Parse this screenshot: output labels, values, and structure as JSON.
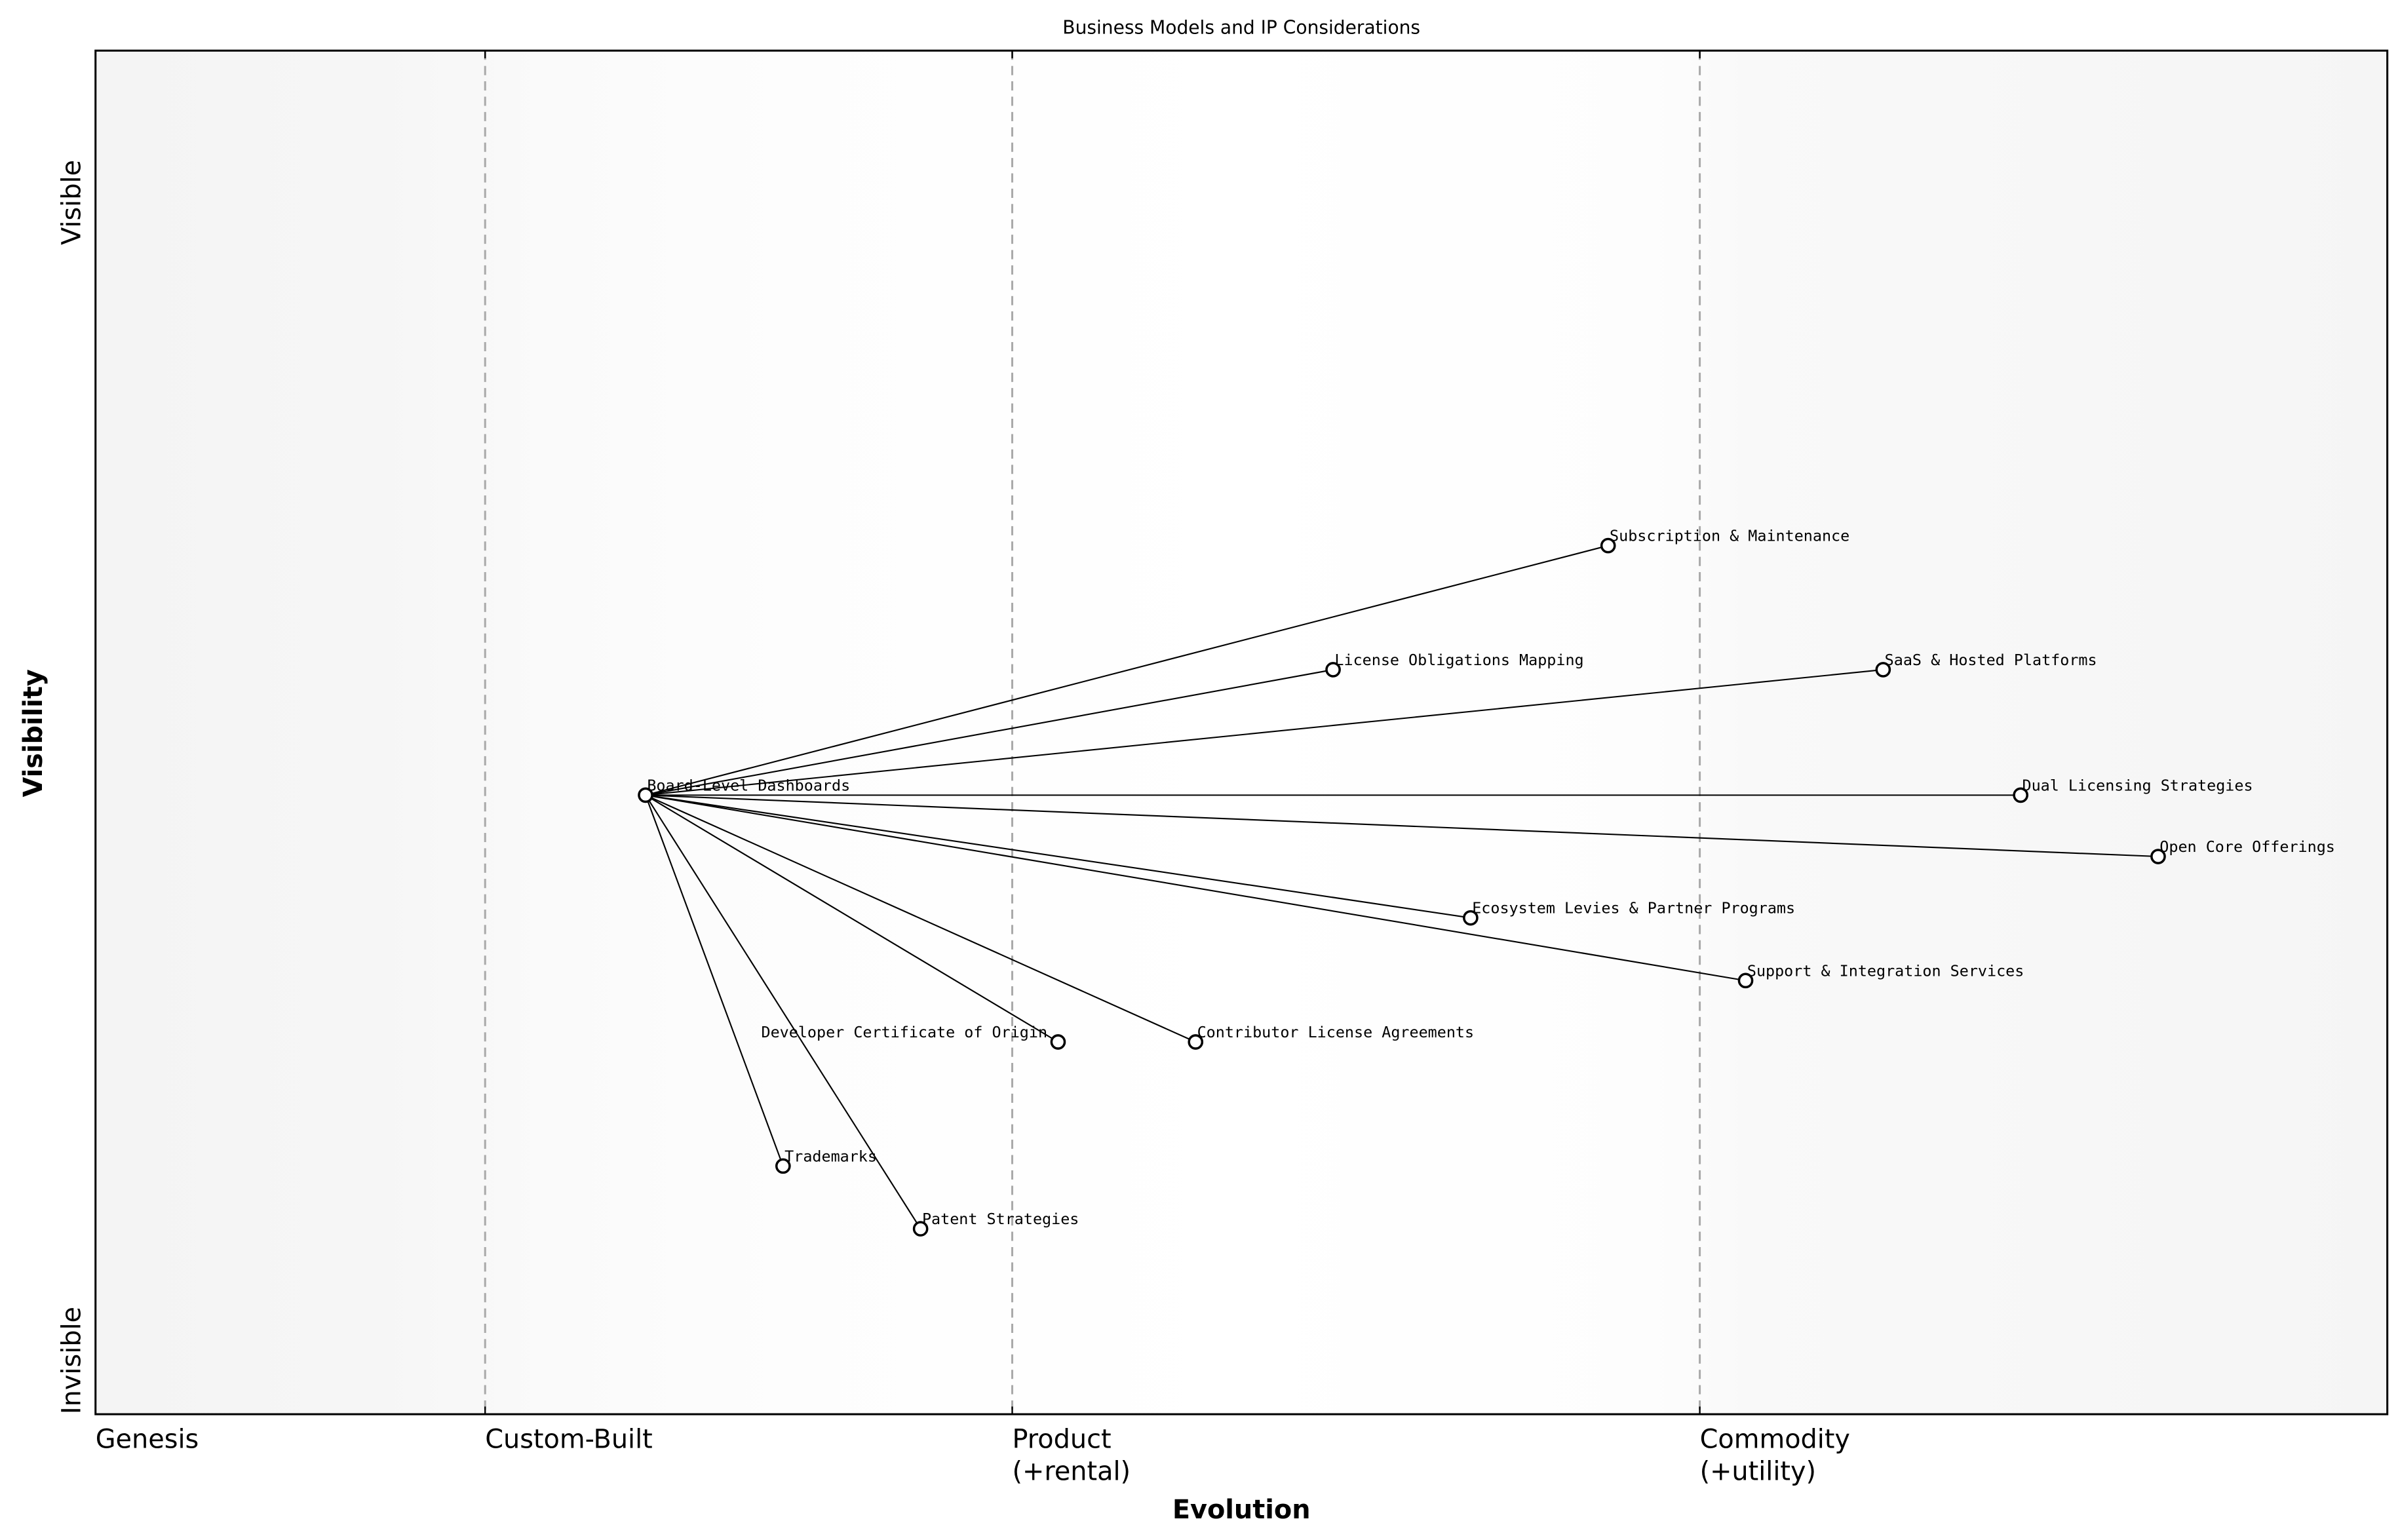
{
  "chart_data": {
    "type": "wardley-map",
    "title": "Business Models and IP Considerations",
    "xlabel": "Evolution",
    "ylabel": "Visibility",
    "xlim": [
      0,
      1
    ],
    "ylim": [
      0,
      1
    ],
    "y_ticks": {
      "top": "Visible",
      "bottom": "Invisible"
    },
    "stages": [
      {
        "label": "Genesis",
        "x": 0.0
      },
      {
        "label": "Custom-Built",
        "x": 0.17
      },
      {
        "label": "Product\n(+rental)",
        "line1": "Product",
        "line2": "(+rental)",
        "x": 0.4
      },
      {
        "label": "Commodity\n(+utility)",
        "line1": "Commodity",
        "line2": "(+utility)",
        "x": 0.7
      }
    ],
    "components": [
      {
        "name": "Board-Level Dashboards",
        "x": 0.24,
        "y": 0.454
      },
      {
        "name": "Subscription & Maintenance",
        "x": 0.66,
        "y": 0.637
      },
      {
        "name": "License Obligations Mapping",
        "x": 0.54,
        "y": 0.546
      },
      {
        "name": "SaaS & Hosted Platforms",
        "x": 0.78,
        "y": 0.546
      },
      {
        "name": "Dual Licensing Strategies",
        "x": 0.84,
        "y": 0.454
      },
      {
        "name": "Open Core Offerings",
        "x": 0.9,
        "y": 0.409
      },
      {
        "name": "Ecosystem Levies & Partner Programs",
        "x": 0.6,
        "y": 0.364
      },
      {
        "name": "Support & Integration Services",
        "x": 0.72,
        "y": 0.318
      },
      {
        "name": "Developer Certificate of Origin",
        "x": 0.42,
        "y": 0.273
      },
      {
        "name": "Contributor License Agreements",
        "x": 0.48,
        "y": 0.273
      },
      {
        "name": "Trademarks",
        "x": 0.3,
        "y": 0.182
      },
      {
        "name": "Patent Strategies",
        "x": 0.36,
        "y": 0.136
      }
    ],
    "links": [
      [
        "Board-Level Dashboards",
        "Subscription & Maintenance"
      ],
      [
        "Board-Level Dashboards",
        "License Obligations Mapping"
      ],
      [
        "Board-Level Dashboards",
        "SaaS & Hosted Platforms"
      ],
      [
        "Board-Level Dashboards",
        "Dual Licensing Strategies"
      ],
      [
        "Board-Level Dashboards",
        "Open Core Offerings"
      ],
      [
        "Board-Level Dashboards",
        "Ecosystem Levies & Partner Programs"
      ],
      [
        "Board-Level Dashboards",
        "Support & Integration Services"
      ],
      [
        "Board-Level Dashboards",
        "Developer Certificate of Origin"
      ],
      [
        "Board-Level Dashboards",
        "Contributor License Agreements"
      ],
      [
        "Board-Level Dashboards",
        "Trademarks"
      ],
      [
        "Board-Level Dashboards",
        "Patent Strategies"
      ]
    ],
    "colors": {
      "node_stroke": "#000000",
      "node_fill": "#ffffff",
      "link": "#000000",
      "stage_line": "#aaaaaa",
      "band_edge": "#f4f4f4"
    }
  }
}
